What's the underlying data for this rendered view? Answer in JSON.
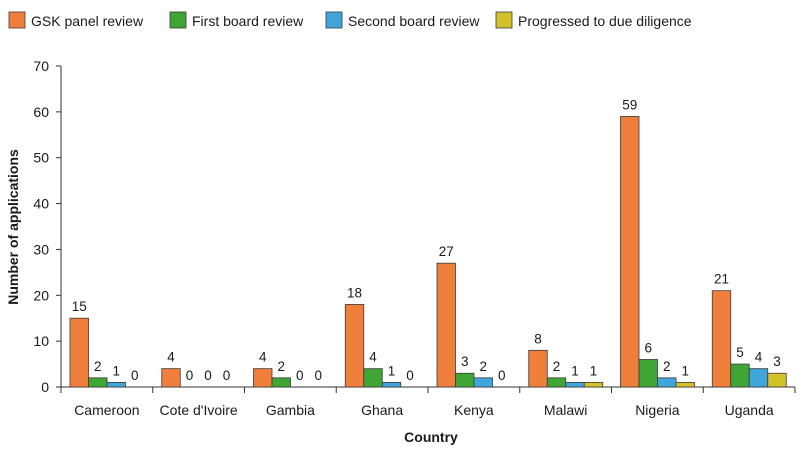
{
  "chart_data": {
    "type": "bar",
    "xlabel": "Country",
    "ylabel": "Number of applications",
    "ylim": [
      0,
      70
    ],
    "yticks": [
      0,
      10,
      20,
      30,
      40,
      50,
      60,
      70
    ],
    "grid": false,
    "legend_position": "top",
    "categories": [
      "Cameroon",
      "Cote d'Ivoire",
      "Gambia",
      "Ghana",
      "Kenya",
      "Malawi",
      "Nigeria",
      "Uganda"
    ],
    "series": [
      {
        "name": "GSK panel review",
        "color": "#F07F3C",
        "values": [
          15,
          4,
          4,
          18,
          27,
          8,
          59,
          21
        ]
      },
      {
        "name": "First board review",
        "color": "#3FA535",
        "values": [
          2,
          0,
          2,
          4,
          3,
          2,
          6,
          5
        ]
      },
      {
        "name": "Second board review",
        "color": "#3FA5DB",
        "values": [
          1,
          0,
          0,
          1,
          2,
          1,
          2,
          4
        ]
      },
      {
        "name": "Progressed to due diligence",
        "color": "#D4C12A",
        "values": [
          0,
          0,
          0,
          0,
          0,
          1,
          1,
          3
        ]
      }
    ]
  }
}
